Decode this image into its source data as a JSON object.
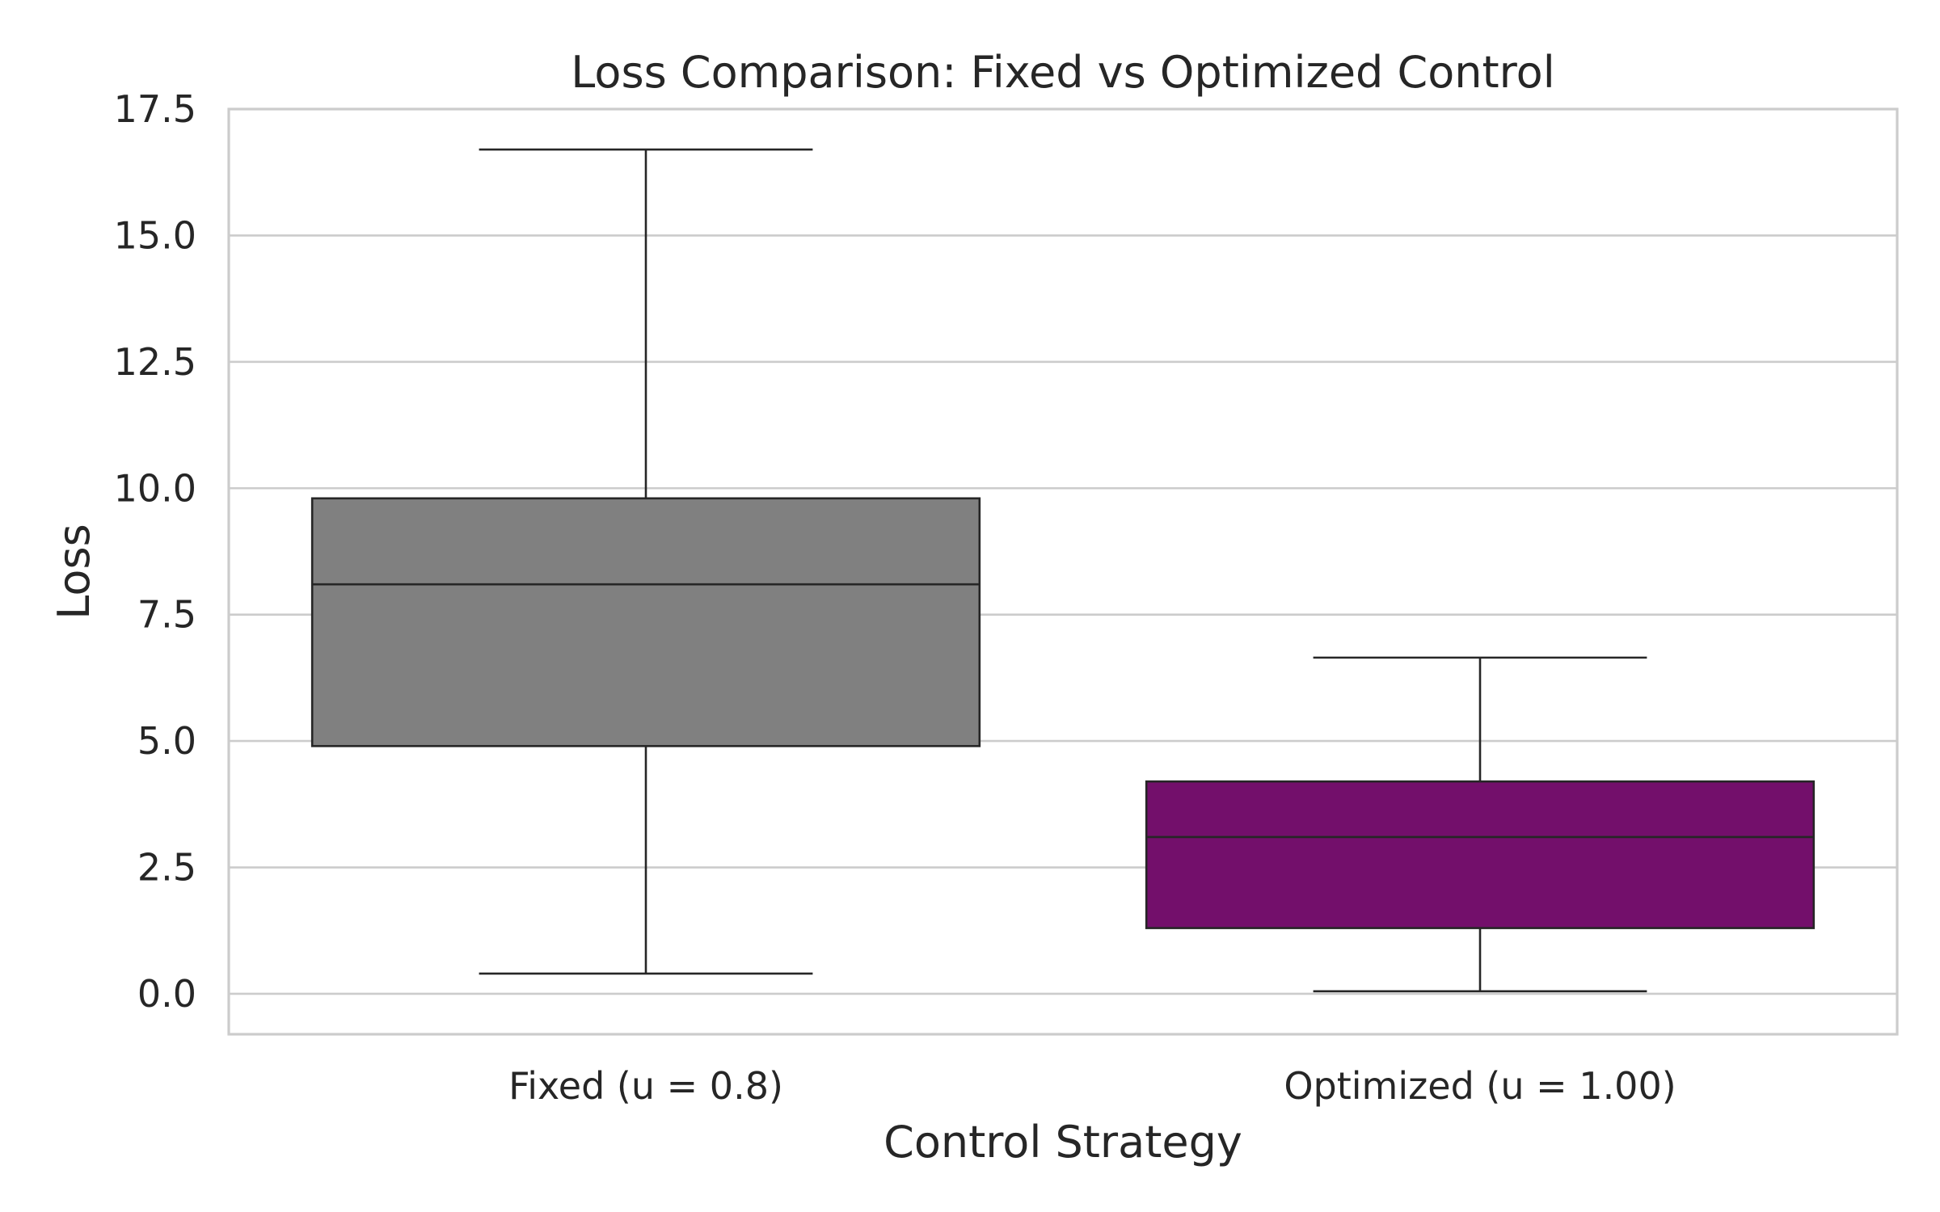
{
  "chart_data": {
    "type": "box",
    "title": "Loss Comparison: Fixed vs Optimized Control",
    "xlabel": "Control Strategy",
    "ylabel": "Loss",
    "ylim": [
      -0.8,
      17.5
    ],
    "yticks": [
      0.0,
      2.5,
      5.0,
      7.5,
      10.0,
      12.5,
      15.0,
      17.5
    ],
    "ytick_labels": [
      "0.0",
      "2.5",
      "5.0",
      "7.5",
      "10.0",
      "12.5",
      "15.0",
      "17.5"
    ],
    "grid": "horizontal",
    "categories": [
      "Fixed (u = 0.8)",
      "Optimized (u = 1.00)"
    ],
    "boxes": [
      {
        "category": "Fixed (u = 0.8)",
        "whisker_low": 0.4,
        "q1": 4.9,
        "median": 8.1,
        "q3": 9.8,
        "whisker_high": 16.7,
        "color": "#808080"
      },
      {
        "category": "Optimized (u = 1.00)",
        "whisker_low": 0.05,
        "q1": 1.3,
        "median": 3.1,
        "q3": 4.2,
        "whisker_high": 6.65,
        "color": "#730f6b"
      }
    ]
  }
}
